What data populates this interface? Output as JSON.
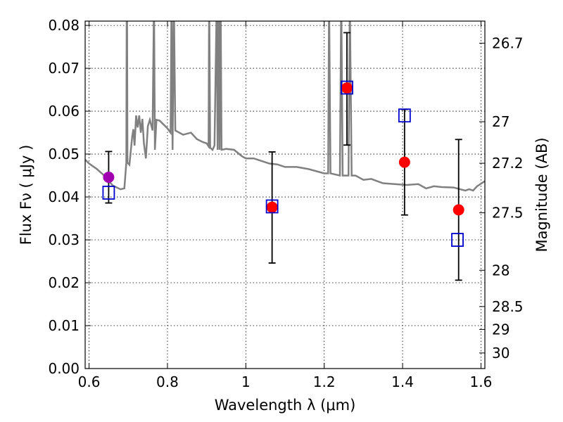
{
  "chart_data": {
    "type": "scatter",
    "xlabel": "Wavelength  λ (μm)",
    "ylabel": "Flux  Fν  ( μJy )",
    "ylabel_right": "Magnitude (AB)",
    "xlim": [
      0.59,
      1.61
    ],
    "ylim": [
      0.0,
      0.081
    ],
    "grid": true,
    "x_ticks": [
      0.6,
      0.8,
      1.0,
      1.2,
      1.4,
      1.6
    ],
    "x_tick_labels": [
      "0.6",
      "0.8",
      "1",
      "1.2",
      "1.4",
      "1.6"
    ],
    "y_ticks": [
      0.0,
      0.01,
      0.02,
      0.03,
      0.04,
      0.05,
      0.06,
      0.07,
      0.08
    ],
    "y_tick_labels": [
      "0.00",
      "0.01",
      "0.02",
      "0.03",
      "0.04",
      "0.05",
      "0.06",
      "0.07",
      "0.08"
    ],
    "right_ticks": [
      26.7,
      27,
      27.2,
      27.5,
      28,
      28.5,
      29,
      30
    ],
    "right_tick_labels": [
      "26.7",
      "27",
      "27.2",
      "27.5",
      "28",
      "28.5",
      "29",
      "30"
    ],
    "series": [
      {
        "kind": "line",
        "color": "#808080",
        "points": [
          [
            0.59,
            0.0487
          ],
          [
            0.6,
            0.0478
          ],
          [
            0.62,
            0.0465
          ],
          [
            0.64,
            0.0449
          ],
          [
            0.66,
            0.0427
          ],
          [
            0.68,
            0.0418
          ],
          [
            0.69,
            0.042
          ],
          [
            0.695,
            0.048
          ],
          [
            0.696,
            0.081
          ],
          [
            0.697,
            0.081
          ],
          [
            0.698,
            0.048
          ],
          [
            0.703,
            0.0475
          ],
          [
            0.71,
            0.054
          ],
          [
            0.713,
            0.0558
          ],
          [
            0.716,
            0.052
          ],
          [
            0.72,
            0.059
          ],
          [
            0.724,
            0.0562
          ],
          [
            0.728,
            0.059
          ],
          [
            0.732,
            0.055
          ],
          [
            0.736,
            0.0582
          ],
          [
            0.74,
            0.0525
          ],
          [
            0.745,
            0.049
          ],
          [
            0.75,
            0.0565
          ],
          [
            0.755,
            0.058
          ],
          [
            0.762,
            0.0555
          ],
          [
            0.765,
            0.081
          ],
          [
            0.766,
            0.081
          ],
          [
            0.768,
            0.051
          ],
          [
            0.772,
            0.058
          ],
          [
            0.78,
            0.0578
          ],
          [
            0.8,
            0.056
          ],
          [
            0.808,
            0.055
          ],
          [
            0.81,
            0.081
          ],
          [
            0.811,
            0.081
          ],
          [
            0.813,
            0.051
          ],
          [
            0.816,
            0.081
          ],
          [
            0.817,
            0.081
          ],
          [
            0.82,
            0.0555
          ],
          [
            0.84,
            0.0545
          ],
          [
            0.86,
            0.055
          ],
          [
            0.875,
            0.0535
          ],
          [
            0.89,
            0.0528
          ],
          [
            0.9,
            0.0525
          ],
          [
            0.905,
            0.0518
          ],
          [
            0.906,
            0.081
          ],
          [
            0.907,
            0.081
          ],
          [
            0.909,
            0.0515
          ],
          [
            0.915,
            0.051
          ],
          [
            0.92,
            0.052
          ],
          [
            0.925,
            0.081
          ],
          [
            0.926,
            0.081
          ],
          [
            0.928,
            0.051
          ],
          [
            0.93,
            0.081
          ],
          [
            0.931,
            0.081
          ],
          [
            0.933,
            0.051
          ],
          [
            0.935,
            0.081
          ],
          [
            0.936,
            0.081
          ],
          [
            0.938,
            0.051
          ],
          [
            0.95,
            0.0512
          ],
          [
            0.97,
            0.051
          ],
          [
            0.99,
            0.0495
          ],
          [
            1.0,
            0.049
          ],
          [
            1.02,
            0.049
          ],
          [
            1.06,
            0.0478
          ],
          [
            1.08,
            0.0476
          ],
          [
            1.1,
            0.047
          ],
          [
            1.13,
            0.047
          ],
          [
            1.16,
            0.0465
          ],
          [
            1.2,
            0.0455
          ],
          [
            1.21,
            0.0455
          ],
          [
            1.212,
            0.081
          ],
          [
            1.213,
            0.081
          ],
          [
            1.216,
            0.0455
          ],
          [
            1.24,
            0.045
          ],
          [
            1.243,
            0.081
          ],
          [
            1.244,
            0.081
          ],
          [
            1.247,
            0.045
          ],
          [
            1.262,
            0.045
          ],
          [
            1.265,
            0.081
          ],
          [
            1.266,
            0.081
          ],
          [
            1.27,
            0.045
          ],
          [
            1.28,
            0.045
          ],
          [
            1.3,
            0.044
          ],
          [
            1.32,
            0.0442
          ],
          [
            1.35,
            0.0432
          ],
          [
            1.38,
            0.043
          ],
          [
            1.41,
            0.0428
          ],
          [
            1.44,
            0.043
          ],
          [
            1.46,
            0.042
          ],
          [
            1.48,
            0.0425
          ],
          [
            1.5,
            0.0423
          ],
          [
            1.53,
            0.0422
          ],
          [
            1.56,
            0.0415
          ],
          [
            1.57,
            0.0418
          ],
          [
            1.58,
            0.0415
          ],
          [
            1.59,
            0.0425
          ],
          [
            1.61,
            0.0437
          ]
        ]
      },
      {
        "kind": "points",
        "marker": "circle",
        "points": [
          {
            "x": 0.65,
            "y": 0.0446,
            "color": "#a000b0"
          },
          {
            "x": 1.067,
            "y": 0.0376,
            "color": "#ff0000"
          },
          {
            "x": 1.258,
            "y": 0.0654,
            "color": "#ff0000"
          },
          {
            "x": 1.405,
            "y": 0.0481,
            "color": "#ff0000"
          },
          {
            "x": 1.543,
            "y": 0.037,
            "color": "#ff0000"
          }
        ],
        "errors": [
          {
            "x": 0.65,
            "lo": 0.0386,
            "hi": 0.0506
          },
          {
            "x": 1.067,
            "lo": 0.0246,
            "hi": 0.0505
          },
          {
            "x": 1.258,
            "lo": 0.0521,
            "hi": 0.0783
          },
          {
            "x": 1.405,
            "lo": 0.0358,
            "hi": 0.0604
          },
          {
            "x": 1.543,
            "lo": 0.0206,
            "hi": 0.0534
          }
        ]
      },
      {
        "kind": "points",
        "marker": "open-square",
        "color": "#0000cc",
        "points": [
          {
            "x": 0.65,
            "y": 0.041
          },
          {
            "x": 1.067,
            "y": 0.0378
          },
          {
            "x": 1.258,
            "y": 0.0655
          },
          {
            "x": 1.405,
            "y": 0.059
          },
          {
            "x": 1.54,
            "y": 0.03
          }
        ]
      }
    ]
  }
}
